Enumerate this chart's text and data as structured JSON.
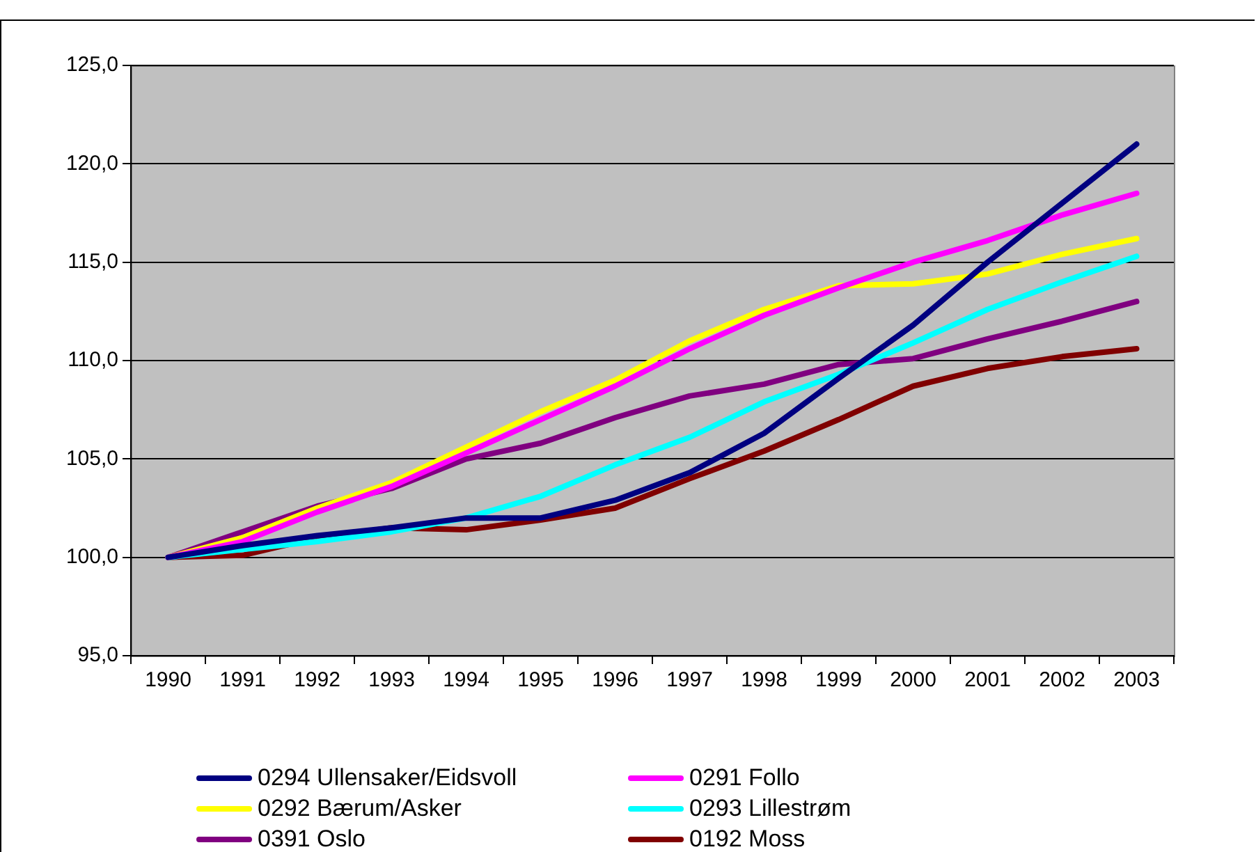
{
  "chart_data": {
    "type": "line",
    "categories": [
      "1990",
      "1991",
      "1992",
      "1993",
      "1994",
      "1995",
      "1996",
      "1997",
      "1998",
      "1999",
      "2000",
      "2001",
      "2002",
      "2003"
    ],
    "ylim": [
      95,
      125
    ],
    "yticks": [
      {
        "value": 95,
        "label": "95,0"
      },
      {
        "value": 100,
        "label": "100,0"
      },
      {
        "value": 105,
        "label": "105,0"
      },
      {
        "value": 110,
        "label": "110,0"
      },
      {
        "value": 115,
        "label": "115,0"
      },
      {
        "value": 120,
        "label": "120,0"
      },
      {
        "value": 125,
        "label": "125,0"
      }
    ],
    "grid": "y",
    "legend": "bottom",
    "marker": "none",
    "line_style": "solid",
    "series": [
      {
        "name": "0294 Ullensaker/Eidsvoll",
        "color": "#000080",
        "values": [
          100,
          100.6,
          101.1,
          101.5,
          102.0,
          102.0,
          102.9,
          104.3,
          106.3,
          109.1,
          111.8,
          115.0,
          118.0,
          121.0
        ]
      },
      {
        "name": "0291 Follo",
        "color": "#ff00ff",
        "values": [
          100,
          100.8,
          102.3,
          103.6,
          105.3,
          107.0,
          108.7,
          110.6,
          112.3,
          113.7,
          115.0,
          116.1,
          117.4,
          118.5
        ]
      },
      {
        "name": "0292 Bærum/Asker",
        "color": "#ffff00",
        "values": [
          100,
          101.0,
          102.5,
          103.8,
          105.6,
          107.4,
          109.0,
          111.0,
          112.6,
          113.8,
          113.9,
          114.4,
          115.4,
          116.2
        ]
      },
      {
        "name": "0293 Lillestrøm",
        "color": "#00ffff",
        "values": [
          100,
          100.4,
          100.8,
          101.3,
          102.0,
          103.1,
          104.7,
          106.1,
          107.9,
          109.3,
          110.9,
          112.6,
          114.0,
          115.3
        ]
      },
      {
        "name": "0391 Oslo",
        "color": "#800080",
        "values": [
          100,
          101.3,
          102.6,
          103.5,
          105.0,
          105.8,
          107.1,
          108.2,
          108.8,
          109.8,
          110.1,
          111.1,
          112.0,
          113.0
        ]
      },
      {
        "name": "0192 Moss",
        "color": "#800000",
        "values": [
          100,
          100.1,
          101.0,
          101.5,
          101.4,
          101.9,
          102.5,
          104.0,
          105.4,
          107.0,
          108.7,
          109.6,
          110.2,
          110.6
        ]
      }
    ]
  }
}
